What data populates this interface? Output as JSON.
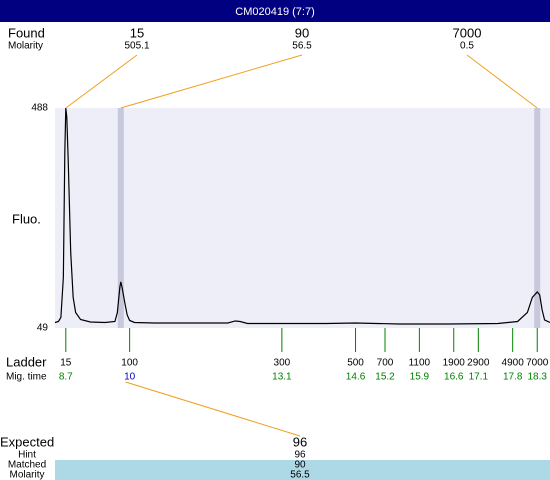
{
  "header": {
    "title": "CM020419 (7:7)"
  },
  "chart_data": {
    "type": "line",
    "y_label": "Fluo.",
    "xlim": [
      8.48,
      18.56
    ],
    "ylim": [
      49,
      488
    ],
    "yticks": [
      49,
      488
    ],
    "x": [
      8.48,
      8.55,
      8.6,
      8.65,
      8.68,
      8.7,
      8.72,
      8.75,
      8.8,
      8.85,
      8.9,
      9.0,
      9.2,
      9.5,
      9.7,
      9.75,
      9.8,
      9.82,
      9.85,
      9.9,
      9.95,
      10.0,
      10.1,
      10.5,
      11.5,
      12.0,
      12.15,
      12.25,
      12.4,
      13.0,
      14.0,
      14.6,
      15.5,
      16.5,
      17.5,
      17.9,
      18.1,
      18.2,
      18.3,
      18.35,
      18.4,
      18.45,
      18.56
    ],
    "series": [
      {
        "color": "#000000",
        "values": [
          60,
          62,
          70,
          150,
          400,
          488,
          470,
          380,
          200,
          110,
          80,
          66,
          61,
          60,
          62,
          80,
          130,
          141,
          128,
          100,
          75,
          64,
          60,
          59,
          59,
          59,
          63,
          62,
          58,
          58,
          58,
          59,
          57,
          57,
          58,
          62,
          80,
          110,
          121,
          115,
          85,
          65,
          60
        ]
      }
    ]
  },
  "found": {
    "label": "Found",
    "sub_label": "Molarity",
    "peaks": [
      {
        "size": 15,
        "molarity": 505.1,
        "time": 8.7,
        "highlighted": false
      },
      {
        "size": 90,
        "molarity": 56.5,
        "time": 9.82,
        "highlighted": true
      },
      {
        "size": 7000,
        "molarity": 0.5,
        "time": 18.3,
        "highlighted": true
      }
    ]
  },
  "ladder": {
    "label": "Ladder",
    "sub_label": "Mig. time",
    "sizes": [
      15,
      100,
      300,
      500,
      700,
      1100,
      1900,
      2900,
      4900,
      7000
    ],
    "times": [
      8.7,
      10,
      13.1,
      14.6,
      15.2,
      15.9,
      16.6,
      17.1,
      17.8,
      18.3
    ]
  },
  "expected": {
    "label": "Expected",
    "value": 96,
    "rows": [
      {
        "label": "Hint",
        "value": 96
      },
      {
        "label": "Matched",
        "value": 90
      },
      {
        "label": "Molarity",
        "value": 56.5
      }
    ]
  }
}
